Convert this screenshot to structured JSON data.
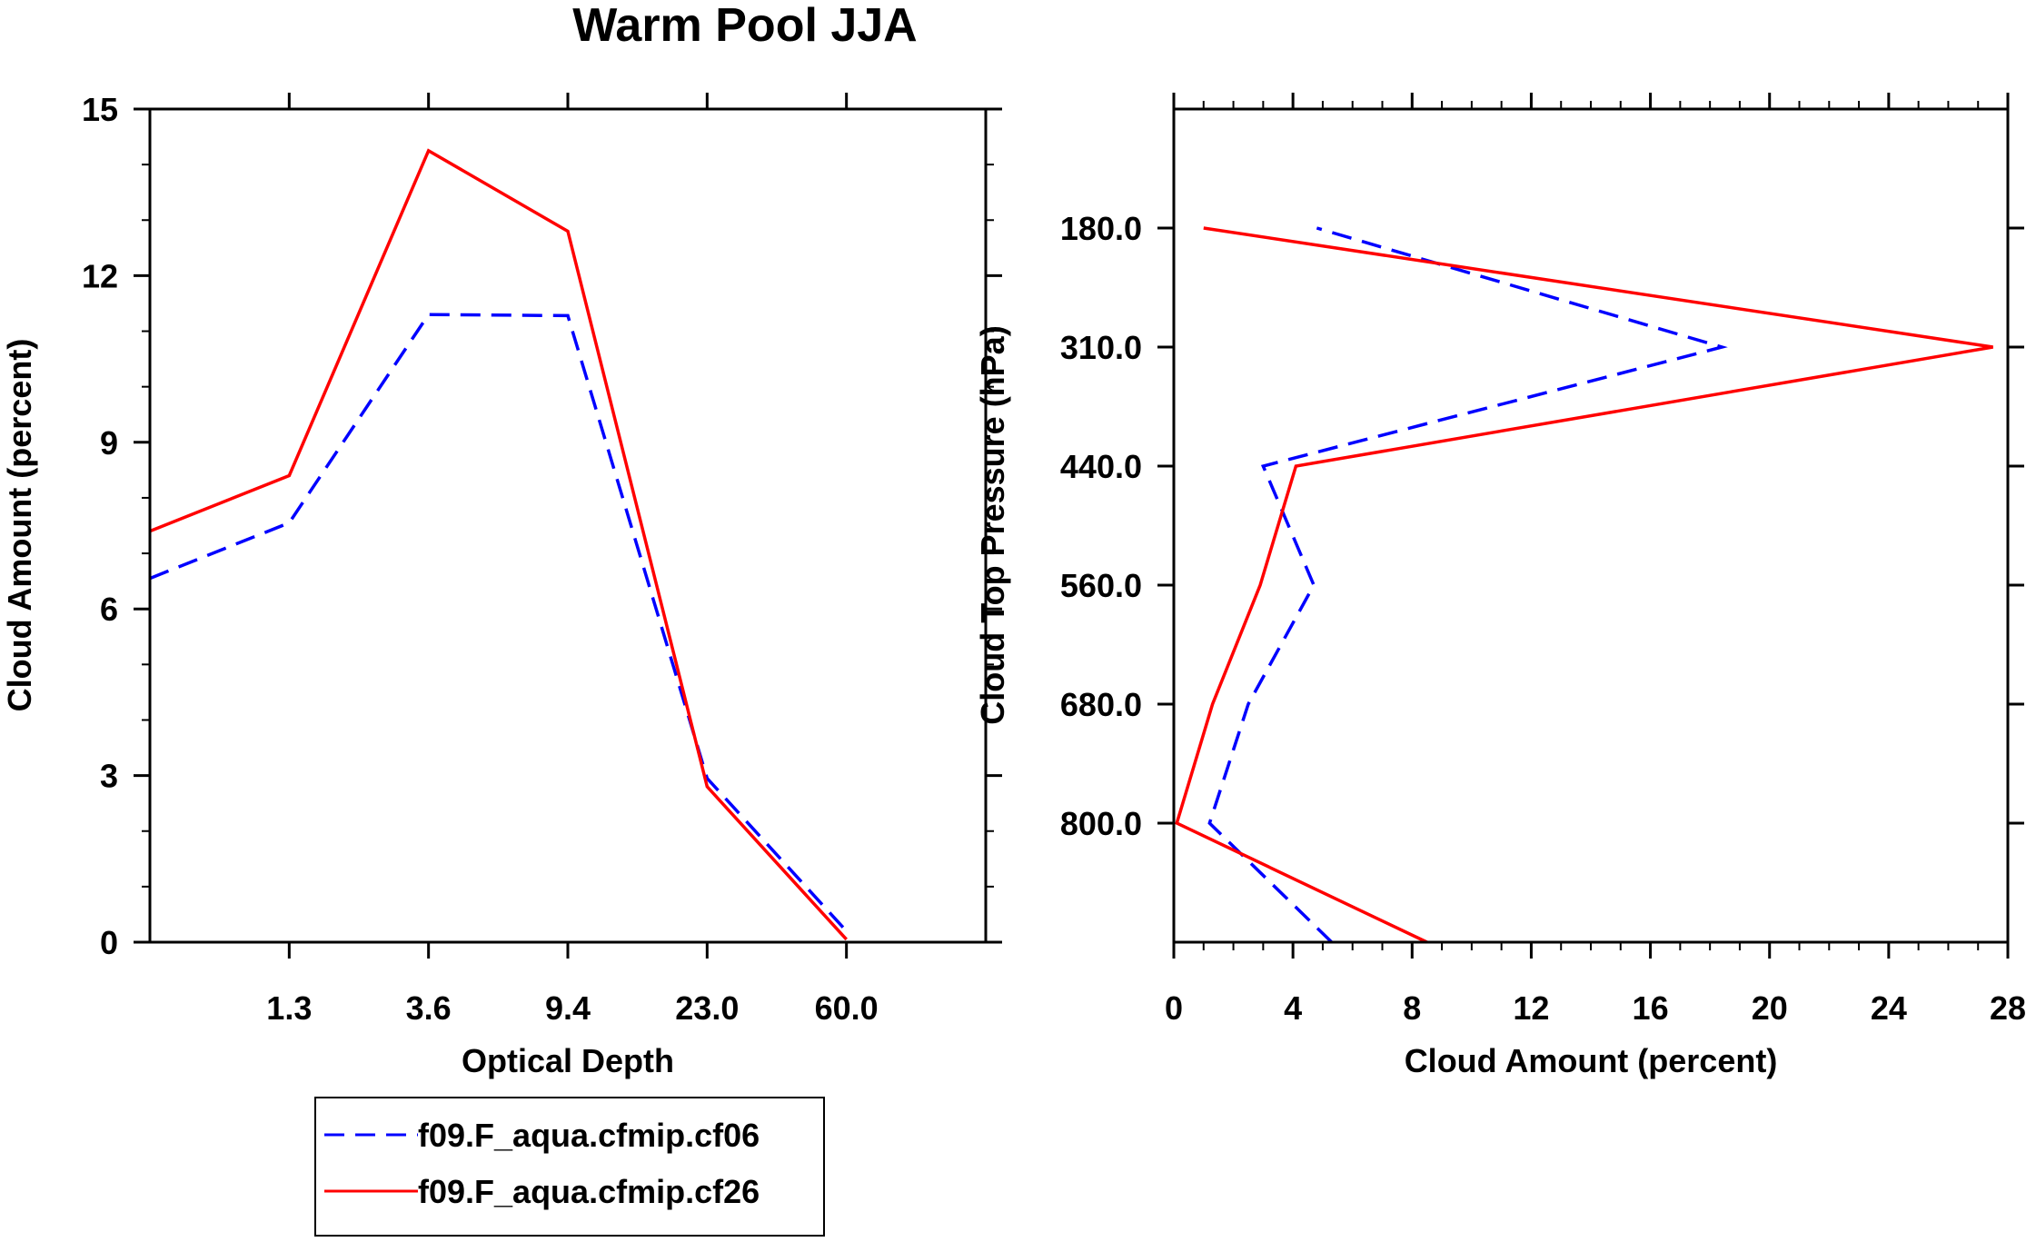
{
  "title": "Warm Pool JJA",
  "legend": {
    "entries": [
      {
        "label": "f09.F_aqua.cfmip.cf06",
        "color": "#0000ff",
        "dash": "dashed"
      },
      {
        "label": "f09.F_aqua.cfmip.cf26",
        "color": "#ff0000",
        "dash": "solid"
      }
    ]
  },
  "chart_data": [
    {
      "type": "line",
      "xlabel": "Optical Depth",
      "ylabel": "Cloud Amount (percent)",
      "x_tick_labels": [
        "1.3",
        "3.6",
        "9.4",
        "23.0",
        "60.0"
      ],
      "x_bins": 6,
      "ylim": [
        0,
        15
      ],
      "y_ticks": [
        0,
        3,
        6,
        9,
        12,
        15
      ],
      "series": [
        {
          "name": "f09.F_aqua.cfmip.cf06",
          "color": "#0000ff",
          "dash": "dashed",
          "values": [
            6.55,
            7.55,
            11.3,
            11.28,
            2.95,
            0.2
          ]
        },
        {
          "name": "f09.F_aqua.cfmip.cf26",
          "color": "#ff0000",
          "dash": "solid",
          "values": [
            7.4,
            8.4,
            14.25,
            12.8,
            2.8,
            0.05
          ]
        }
      ]
    },
    {
      "type": "line",
      "xlabel": "Cloud Amount (percent)",
      "ylabel": "Cloud Top Pressure (hPa)",
      "xlim": [
        0,
        28
      ],
      "x_ticks": [
        0,
        4,
        8,
        12,
        16,
        20,
        24,
        28
      ],
      "y_tick_labels": [
        "180.0",
        "310.0",
        "440.0",
        "560.0",
        "680.0",
        "800.0"
      ],
      "pressure_levels": 7,
      "series": [
        {
          "name": "f09.F_aqua.cfmip.cf06",
          "color": "#0000ff",
          "dash": "dashed",
          "values": [
            5.3,
            1.2,
            2.5,
            4.7,
            3.0,
            18.4,
            4.8
          ]
        },
        {
          "name": "f09.F_aqua.cfmip.cf26",
          "color": "#ff0000",
          "dash": "solid",
          "values": [
            8.5,
            0.1,
            1.3,
            2.9,
            4.1,
            27.5,
            1.0
          ]
        }
      ]
    }
  ]
}
